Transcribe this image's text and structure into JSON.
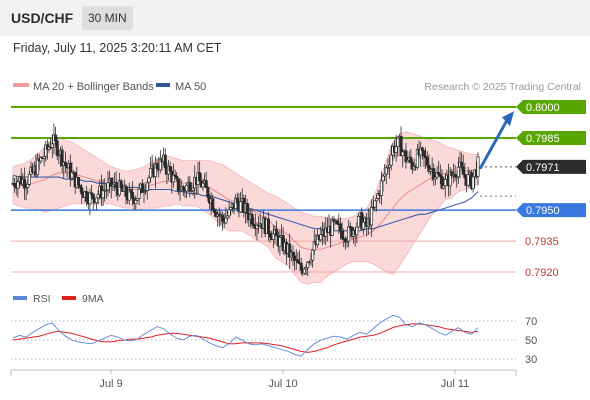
{
  "header": {
    "symbol": "USD/CHF",
    "timeframe": "30 MIN"
  },
  "datetime": "Friday, July 11, 2025 3:20:11 AM CET",
  "legend": {
    "items": [
      {
        "name": "MA 20 + Bollinger Bands",
        "color": "#f29a9a"
      },
      {
        "name": "MA 50",
        "color": "#2f5597"
      }
    ],
    "credit": "Research © 2025 Trading Central"
  },
  "colors": {
    "resistance": "#5aa600",
    "current": "#2b2b2b",
    "pivot": "#3a78e0",
    "support": "#f0a8a8",
    "support_text": "#c0392b",
    "arrow": "#2a6ab8",
    "band": "#f9cccc",
    "candle": "#2b2b2b"
  },
  "chart_data": [
    {
      "type": "candlestick",
      "title": "",
      "x_ticks": [
        "Jul 9",
        "Jul 10",
        "Jul 11"
      ],
      "y_range": [
        0.7915,
        0.8005
      ],
      "levels": [
        {
          "value": 0.8,
          "label": "0.8000",
          "kind": "resistance"
        },
        {
          "value": 0.7985,
          "label": "0.7985",
          "kind": "resistance"
        },
        {
          "value": 0.7971,
          "label": "0.7971",
          "kind": "current"
        },
        {
          "value": 0.795,
          "label": "0.7950",
          "kind": "pivot"
        },
        {
          "value": 0.7935,
          "label": "0.7935",
          "kind": "support"
        },
        {
          "value": 0.792,
          "label": "0.7920",
          "kind": "support"
        }
      ],
      "projection": {
        "from": 0.797,
        "to": 0.7996
      },
      "price_path": [
        0.7963,
        0.7965,
        0.7964,
        0.7968,
        0.7973,
        0.7978,
        0.7984,
        0.7979,
        0.7972,
        0.7967,
        0.7962,
        0.7958,
        0.7956,
        0.7958,
        0.796,
        0.7962,
        0.7961,
        0.7958,
        0.7956,
        0.7957,
        0.7962,
        0.7967,
        0.7972,
        0.7973,
        0.7968,
        0.7962,
        0.796,
        0.7963,
        0.7965,
        0.7962,
        0.7957,
        0.795,
        0.7945,
        0.7948,
        0.7954,
        0.7952,
        0.7948,
        0.7945,
        0.7944,
        0.7941,
        0.7937,
        0.7934,
        0.793,
        0.7925,
        0.7921,
        0.7926,
        0.7932,
        0.7937,
        0.794,
        0.7942,
        0.794,
        0.7938,
        0.7941,
        0.7945,
        0.7942,
        0.795,
        0.796,
        0.797,
        0.798,
        0.7982,
        0.7975,
        0.7972,
        0.7977,
        0.7974,
        0.797,
        0.7966,
        0.7963,
        0.7967,
        0.7971,
        0.7966,
        0.7964,
        0.7972
      ],
      "ma20": [
        0.7962,
        0.7962,
        0.7962,
        0.7963,
        0.7964,
        0.7965,
        0.7967,
        0.7968,
        0.7968,
        0.7968,
        0.7967,
        0.7966,
        0.7965,
        0.7964,
        0.7963,
        0.7962,
        0.7961,
        0.796,
        0.796,
        0.796,
        0.7961,
        0.7962,
        0.7963,
        0.7964,
        0.7964,
        0.7964,
        0.7963,
        0.7963,
        0.7963,
        0.7962,
        0.7961,
        0.7959,
        0.7957,
        0.7955,
        0.7954,
        0.7953,
        0.7951,
        0.7949,
        0.7947,
        0.7945,
        0.7942,
        0.794,
        0.7938,
        0.7935,
        0.7932,
        0.7931,
        0.7931,
        0.7931,
        0.7932,
        0.7933,
        0.7934,
        0.7935,
        0.7936,
        0.7937,
        0.7938,
        0.794,
        0.7943,
        0.7947,
        0.7951,
        0.7955,
        0.7958,
        0.796,
        0.7962,
        0.7964,
        0.7966,
        0.7967,
        0.7968,
        0.7968,
        0.7969,
        0.7969,
        0.7969,
        0.797
      ],
      "bb_upper": [
        0.7971,
        0.7972,
        0.7973,
        0.7975,
        0.7978,
        0.7981,
        0.7984,
        0.7985,
        0.7984,
        0.7983,
        0.7981,
        0.7979,
        0.7977,
        0.7975,
        0.7973,
        0.7971,
        0.797,
        0.7969,
        0.7969,
        0.797,
        0.7971,
        0.7973,
        0.7975,
        0.7976,
        0.7976,
        0.7975,
        0.7974,
        0.7974,
        0.7974,
        0.7974,
        0.7974,
        0.7973,
        0.7972,
        0.797,
        0.7968,
        0.7966,
        0.7964,
        0.7962,
        0.796,
        0.7958,
        0.7957,
        0.7955,
        0.7953,
        0.7951,
        0.7949,
        0.7948,
        0.7947,
        0.7947,
        0.7946,
        0.7946,
        0.7946,
        0.7946,
        0.7947,
        0.7949,
        0.7951,
        0.7956,
        0.7964,
        0.7974,
        0.7983,
        0.7987,
        0.7988,
        0.7987,
        0.7986,
        0.7985,
        0.7984,
        0.7983,
        0.7981,
        0.798,
        0.7979,
        0.7978,
        0.7977,
        0.7977
      ],
      "bb_lower": [
        0.7953,
        0.7952,
        0.7951,
        0.7951,
        0.795,
        0.7949,
        0.795,
        0.7951,
        0.7952,
        0.7953,
        0.7953,
        0.7953,
        0.7953,
        0.7953,
        0.7953,
        0.7953,
        0.7952,
        0.7951,
        0.7951,
        0.795,
        0.7951,
        0.7951,
        0.7951,
        0.7952,
        0.7952,
        0.7953,
        0.7952,
        0.7952,
        0.7952,
        0.795,
        0.7948,
        0.7945,
        0.7942,
        0.794,
        0.794,
        0.794,
        0.7938,
        0.7936,
        0.7934,
        0.7932,
        0.7927,
        0.7925,
        0.7923,
        0.7919,
        0.7915,
        0.7914,
        0.7915,
        0.7915,
        0.7918,
        0.792,
        0.7922,
        0.7924,
        0.7925,
        0.7925,
        0.7925,
        0.7924,
        0.7922,
        0.792,
        0.7919,
        0.7923,
        0.7928,
        0.7933,
        0.7938,
        0.7943,
        0.7948,
        0.7951,
        0.7955,
        0.7956,
        0.7959,
        0.796,
        0.7961,
        0.7963
      ],
      "ma50": [
        0.7967,
        0.7966,
        0.7966,
        0.7966,
        0.7966,
        0.7966,
        0.7966,
        0.7966,
        0.7965,
        0.7965,
        0.7965,
        0.7964,
        0.7964,
        0.7963,
        0.7963,
        0.7962,
        0.7962,
        0.7961,
        0.7961,
        0.7961,
        0.796,
        0.796,
        0.796,
        0.796,
        0.796,
        0.7959,
        0.7959,
        0.7958,
        0.7958,
        0.7957,
        0.7957,
        0.7956,
        0.7955,
        0.7954,
        0.7953,
        0.7952,
        0.7951,
        0.795,
        0.7949,
        0.7948,
        0.7947,
        0.7946,
        0.7945,
        0.7944,
        0.7943,
        0.7942,
        0.7941,
        0.7941,
        0.794,
        0.794,
        0.794,
        0.794,
        0.794,
        0.794,
        0.7941,
        0.7941,
        0.7942,
        0.7943,
        0.7944,
        0.7945,
        0.7946,
        0.7947,
        0.7948,
        0.7948,
        0.7949,
        0.795,
        0.7951,
        0.7952,
        0.7953,
        0.7954,
        0.7956,
        0.7959
      ]
    },
    {
      "type": "line",
      "title": "",
      "legend": [
        {
          "name": "RSI",
          "color": "#5b85d6"
        },
        {
          "name": "9MA",
          "color": "#e02020"
        }
      ],
      "y_range": [
        22,
        80
      ],
      "y_ticks": [
        70,
        50,
        30
      ],
      "reference_lines": [
        70,
        50,
        30
      ],
      "rsi": [
        52,
        55,
        53,
        58,
        62,
        66,
        68,
        60,
        54,
        50,
        48,
        47,
        46,
        49,
        52,
        55,
        53,
        50,
        49,
        51,
        56,
        60,
        64,
        62,
        56,
        52,
        50,
        54,
        55,
        51,
        47,
        44,
        42,
        46,
        53,
        50,
        46,
        45,
        46,
        44,
        42,
        40,
        38,
        35,
        33,
        40,
        46,
        50,
        52,
        54,
        53,
        51,
        55,
        58,
        56,
        62,
        68,
        72,
        76,
        74,
        66,
        64,
        68,
        66,
        62,
        58,
        55,
        59,
        63,
        58,
        56,
        63
      ],
      "ma9": [
        50,
        51,
        52,
        53,
        54,
        56,
        58,
        59,
        58,
        57,
        55,
        53,
        51,
        49,
        48,
        48,
        49,
        50,
        51,
        51,
        52,
        53,
        55,
        56,
        57,
        57,
        56,
        55,
        54,
        53,
        52,
        50,
        48,
        46,
        46,
        47,
        47,
        47,
        47,
        46,
        45,
        44,
        42,
        40,
        38,
        37,
        38,
        40,
        42,
        45,
        47,
        49,
        51,
        53,
        54,
        55,
        57,
        60,
        63,
        65,
        66,
        67,
        67,
        66,
        65,
        64,
        62,
        61,
        60,
        59,
        58,
        59
      ]
    }
  ]
}
